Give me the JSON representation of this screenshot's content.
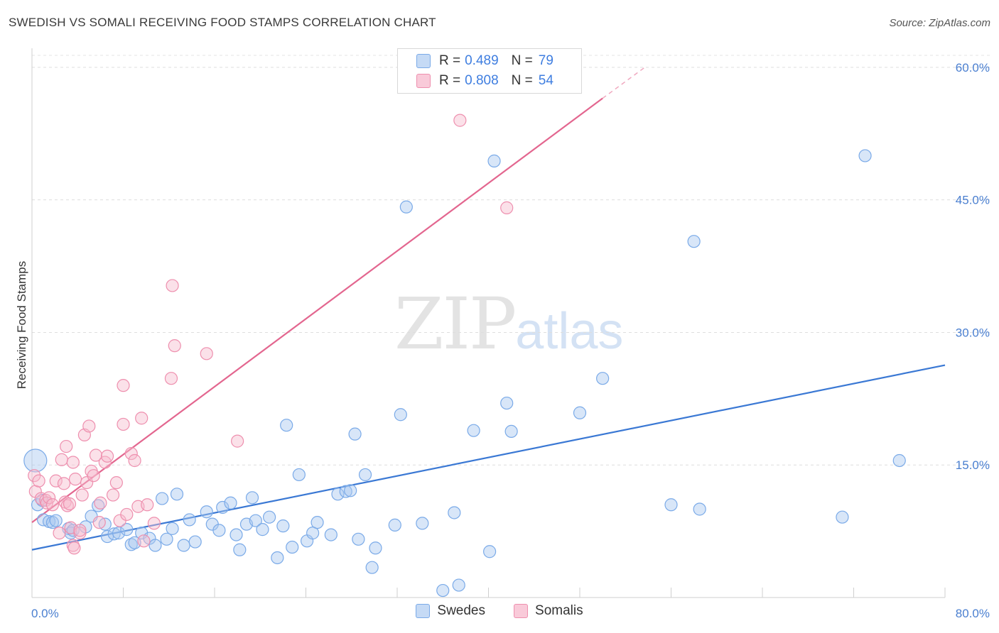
{
  "title": "SWEDISH VS SOMALI RECEIVING FOOD STAMPS CORRELATION CHART",
  "source": "Source: ZipAtlas.com",
  "watermark": {
    "zip": "ZIP",
    "atlas": "atlas"
  },
  "colors": {
    "swedes": "#7aaae8",
    "somalis": "#ee8fae",
    "swedes_line": "#3a78d4",
    "somalis_line": "#e3668f",
    "tick_text": "#4a7fd0"
  },
  "legend": {
    "r_label": "R =",
    "n_label": "N =",
    "rows": [
      {
        "r": "0.489",
        "n": "79"
      },
      {
        "r": "0.808",
        "n": "54"
      }
    ]
  },
  "bottom_legend": [
    "Swedes",
    "Somalis"
  ],
  "chart_data": {
    "type": "scatter",
    "xlabel": "",
    "ylabel": "Receiving Food Stamps",
    "xlim": [
      0,
      80
    ],
    "ylim": [
      0,
      62
    ],
    "x_tick_labels": [
      {
        "value": 0,
        "label": "0.0%"
      },
      {
        "value": 80,
        "label": "80.0%"
      }
    ],
    "y_tick_labels": [
      {
        "value": 15,
        "label": "15.0%"
      },
      {
        "value": 30,
        "label": "30.0%"
      },
      {
        "value": 45,
        "label": "45.0%"
      },
      {
        "value": 60,
        "label": "60.0%"
      }
    ],
    "series": [
      {
        "name": "Swedes",
        "r": 0.489,
        "n": 79,
        "trend": {
          "x0": 0,
          "y0": 5.4,
          "x1": 80,
          "y1": 26.3
        },
        "points": [
          [
            0.3,
            15.5
          ],
          [
            0.5,
            10.5
          ],
          [
            0.9,
            11.0
          ],
          [
            1.0,
            8.8
          ],
          [
            1.5,
            8.6
          ],
          [
            1.8,
            8.5
          ],
          [
            2.1,
            8.7
          ],
          [
            3.2,
            7.8
          ],
          [
            3.4,
            7.3
          ],
          [
            3.6,
            7.6
          ],
          [
            4.7,
            8.0
          ],
          [
            5.2,
            9.2
          ],
          [
            5.8,
            10.4
          ],
          [
            6.4,
            8.3
          ],
          [
            6.6,
            6.9
          ],
          [
            7.2,
            7.2
          ],
          [
            7.6,
            7.3
          ],
          [
            8.3,
            7.7
          ],
          [
            8.7,
            6.0
          ],
          [
            9.0,
            6.2
          ],
          [
            9.6,
            7.3
          ],
          [
            10.3,
            6.7
          ],
          [
            10.8,
            5.9
          ],
          [
            11.4,
            11.2
          ],
          [
            11.8,
            6.6
          ],
          [
            12.3,
            7.8
          ],
          [
            12.7,
            11.7
          ],
          [
            13.3,
            5.9
          ],
          [
            13.8,
            8.8
          ],
          [
            14.3,
            6.3
          ],
          [
            15.3,
            9.7
          ],
          [
            15.8,
            8.3
          ],
          [
            16.4,
            7.6
          ],
          [
            16.7,
            10.2
          ],
          [
            17.4,
            10.7
          ],
          [
            17.9,
            7.1
          ],
          [
            18.2,
            5.4
          ],
          [
            18.8,
            8.3
          ],
          [
            19.3,
            11.3
          ],
          [
            19.6,
            8.7
          ],
          [
            20.2,
            7.7
          ],
          [
            20.8,
            9.1
          ],
          [
            21.5,
            4.5
          ],
          [
            22.0,
            8.1
          ],
          [
            22.3,
            19.5
          ],
          [
            22.8,
            5.7
          ],
          [
            23.4,
            13.9
          ],
          [
            24.1,
            6.4
          ],
          [
            24.6,
            7.3
          ],
          [
            25.0,
            8.5
          ],
          [
            26.2,
            7.1
          ],
          [
            26.8,
            11.7
          ],
          [
            27.5,
            12.0
          ],
          [
            27.9,
            12.1
          ],
          [
            28.3,
            18.5
          ],
          [
            28.6,
            6.6
          ],
          [
            29.2,
            13.9
          ],
          [
            30.1,
            5.6
          ],
          [
            29.8,
            3.4
          ],
          [
            31.8,
            8.2
          ],
          [
            32.3,
            20.7
          ],
          [
            32.8,
            44.2
          ],
          [
            34.2,
            8.4
          ],
          [
            36.0,
            0.8
          ],
          [
            37.0,
            9.6
          ],
          [
            37.4,
            1.4
          ],
          [
            38.7,
            18.9
          ],
          [
            40.5,
            49.4
          ],
          [
            40.1,
            5.2
          ],
          [
            41.6,
            22.0
          ],
          [
            42.0,
            18.8
          ],
          [
            48.0,
            20.9
          ],
          [
            50.0,
            24.8
          ],
          [
            56.0,
            10.5
          ],
          [
            58.0,
            40.3
          ],
          [
            58.5,
            10.0
          ],
          [
            71.0,
            9.1
          ],
          [
            73.0,
            50.0
          ],
          [
            76.0,
            15.5
          ]
        ]
      },
      {
        "name": "Somalis",
        "r": 0.808,
        "n": 54,
        "trend": {
          "x0": 0,
          "y0": 8.5,
          "x1": 50,
          "y1": 56.5,
          "dash_x1": 53.7,
          "dash_y1": 60.0
        },
        "points": [
          [
            0.2,
            13.8
          ],
          [
            0.3,
            12.0
          ],
          [
            0.6,
            13.2
          ],
          [
            0.8,
            11.2
          ],
          [
            1.2,
            11.0
          ],
          [
            1.3,
            10.7
          ],
          [
            1.5,
            11.3
          ],
          [
            1.8,
            10.5
          ],
          [
            2.1,
            13.2
          ],
          [
            2.4,
            7.3
          ],
          [
            2.6,
            15.6
          ],
          [
            2.8,
            12.9
          ],
          [
            2.9,
            10.8
          ],
          [
            3.0,
            17.1
          ],
          [
            3.1,
            10.4
          ],
          [
            3.3,
            10.6
          ],
          [
            3.4,
            7.9
          ],
          [
            3.6,
            15.3
          ],
          [
            3.8,
            13.4
          ],
          [
            3.6,
            5.9
          ],
          [
            3.7,
            5.6
          ],
          [
            4.2,
            7.3
          ],
          [
            4.4,
            11.6
          ],
          [
            4.6,
            18.4
          ],
          [
            4.8,
            13.0
          ],
          [
            5.0,
            19.4
          ],
          [
            5.2,
            14.3
          ],
          [
            5.4,
            13.8
          ],
          [
            5.6,
            16.1
          ],
          [
            5.9,
            8.5
          ],
          [
            6.0,
            10.7
          ],
          [
            6.4,
            15.3
          ],
          [
            6.6,
            16.0
          ],
          [
            7.1,
            11.6
          ],
          [
            7.4,
            13.0
          ],
          [
            7.7,
            8.7
          ],
          [
            8.0,
            24.0
          ],
          [
            8.0,
            19.6
          ],
          [
            8.3,
            9.4
          ],
          [
            8.7,
            16.3
          ],
          [
            9.0,
            15.5
          ],
          [
            9.3,
            10.3
          ],
          [
            9.6,
            20.3
          ],
          [
            9.8,
            6.4
          ],
          [
            10.1,
            10.5
          ],
          [
            10.7,
            8.4
          ],
          [
            12.2,
            24.8
          ],
          [
            12.3,
            35.3
          ],
          [
            12.5,
            28.5
          ],
          [
            15.3,
            27.6
          ],
          [
            18.0,
            17.7
          ],
          [
            37.5,
            54.0
          ],
          [
            41.6,
            44.1
          ],
          [
            4.2,
            7.6
          ]
        ]
      }
    ]
  }
}
